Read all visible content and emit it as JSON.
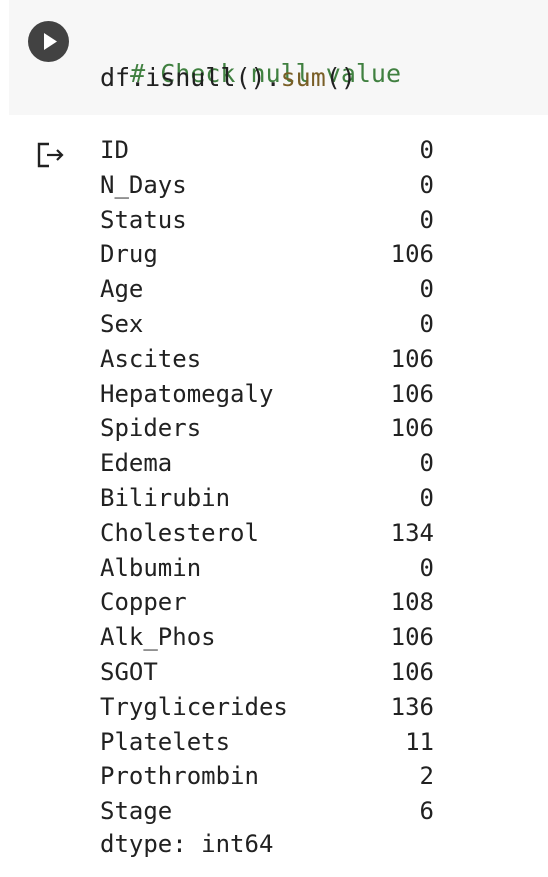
{
  "code_cell": {
    "run_icon": "play-icon",
    "comment": "# Check null value",
    "code_prefix": "df.isnull().",
    "code_fn": "sum",
    "code_suffix": "()"
  },
  "output": {
    "icon": "output-redirect-icon",
    "rows": [
      {
        "name": "ID",
        "count": "0"
      },
      {
        "name": "N_Days",
        "count": "0"
      },
      {
        "name": "Status",
        "count": "0"
      },
      {
        "name": "Drug",
        "count": "106"
      },
      {
        "name": "Age",
        "count": "0"
      },
      {
        "name": "Sex",
        "count": "0"
      },
      {
        "name": "Ascites",
        "count": "106"
      },
      {
        "name": "Hepatomegaly",
        "count": "106"
      },
      {
        "name": "Spiders",
        "count": "106"
      },
      {
        "name": "Edema",
        "count": "0"
      },
      {
        "name": "Bilirubin",
        "count": "0"
      },
      {
        "name": "Cholesterol",
        "count": "134"
      },
      {
        "name": "Albumin",
        "count": "0"
      },
      {
        "name": "Copper",
        "count": "108"
      },
      {
        "name": "Alk_Phos",
        "count": "106"
      },
      {
        "name": "SGOT",
        "count": "106"
      },
      {
        "name": "Tryglicerides",
        "count": "136"
      },
      {
        "name": "Platelets",
        "count": "11"
      },
      {
        "name": "Prothrombin",
        "count": "2"
      },
      {
        "name": "Stage",
        "count": "6"
      }
    ],
    "dtype": "dtype: int64"
  },
  "colors": {
    "cell_background": "#f7f7f7",
    "run_button": "#424242",
    "comment": "#408040",
    "function": "#795e26",
    "text": "#212121"
  }
}
